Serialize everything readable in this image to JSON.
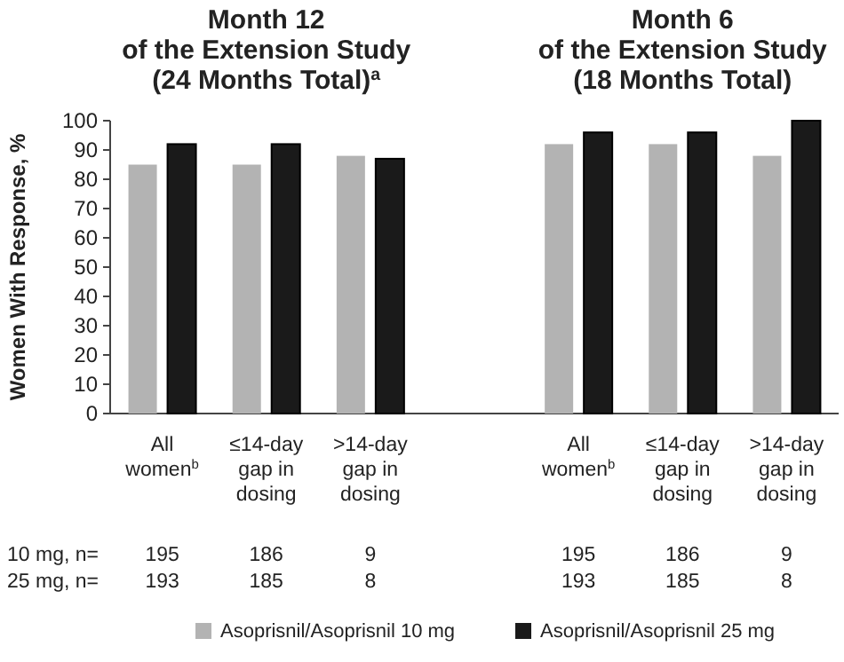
{
  "chart_data": {
    "type": "bar",
    "categories": [
      "All\nwomen$^{b}$",
      "≤14-day\ngap in\ndosing",
      ">14-day\ngap in\ndosing",
      null,
      "All\nwomen$^{b}$",
      "≤14-day\ngap in\ndosing",
      ">14-day\ngap in\ndosing"
    ],
    "ylabel": "Women With Response, %",
    "ylim": [
      0,
      100
    ],
    "yticks": [
      0,
      10,
      20,
      30,
      40,
      50,
      60,
      70,
      80,
      90,
      100
    ],
    "grid": false,
    "legend": "bottom",
    "series": [
      {
        "name": "Asoprisnil/Asoprisnil 10 mg",
        "color": "#b3b3b3",
        "values": [
          85,
          85,
          88,
          null,
          92,
          92,
          88
        ]
      },
      {
        "name": "Asoprisnil/Asoprisnil 25 mg",
        "color": "#1a1a1a",
        "values": [
          92,
          92,
          87,
          null,
          96,
          96,
          100
        ]
      }
    ],
    "annotations": [
      "Month 12\nof the Extension Study\n(24 Months Total)$^{a}$",
      "Month 6\nof the Extension Study\n(18 Months Total)",
      "10 mg, n=",
      "25 mg, n=",
      "195",
      "186",
      "9",
      "195",
      "186",
      "9",
      "193",
      "185",
      "8",
      "193",
      "185",
      "8"
    ]
  }
}
